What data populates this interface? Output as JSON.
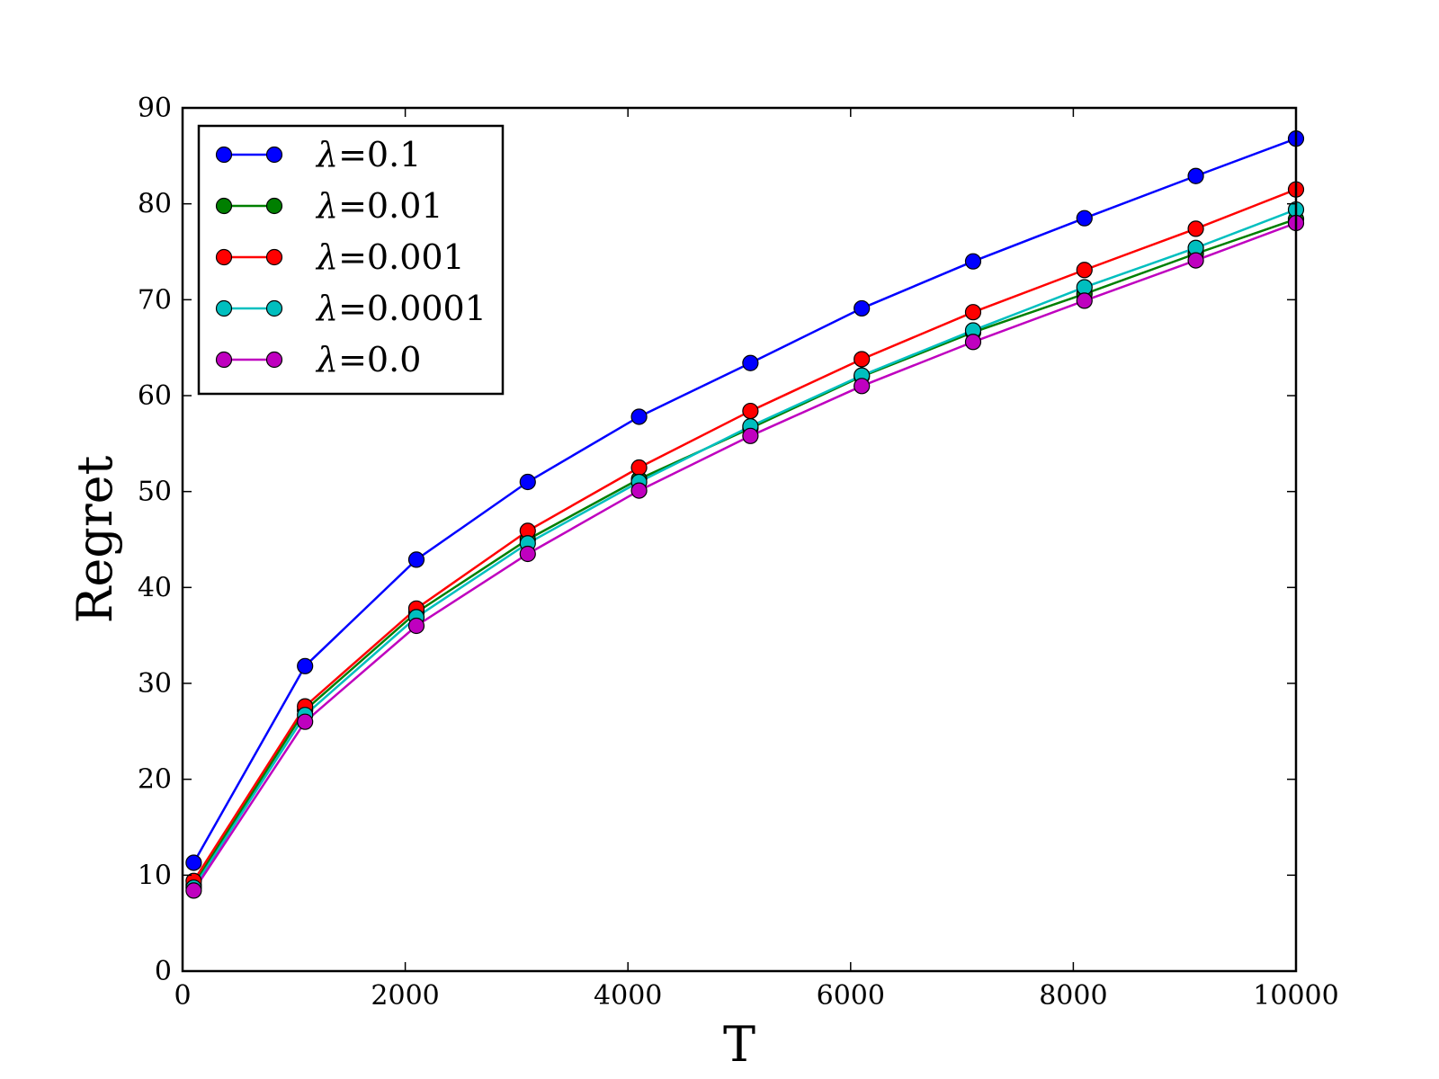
{
  "chart_data": {
    "type": "line",
    "title": "",
    "xlabel": "T",
    "ylabel": "Regret",
    "xlim": [
      0,
      10000
    ],
    "ylim": [
      0,
      90
    ],
    "xticks": [
      0,
      2000,
      4000,
      6000,
      8000,
      10000
    ],
    "xtick_labels": [
      "0",
      "2000",
      "4000",
      "6000",
      "8000",
      "10000"
    ],
    "yticks": [
      0,
      10,
      20,
      30,
      40,
      50,
      60,
      70,
      80,
      90
    ],
    "ytick_labels": [
      "0",
      "10",
      "20",
      "30",
      "40",
      "50",
      "60",
      "70",
      "80",
      "90"
    ],
    "grid": false,
    "legend_position": "top-left",
    "x": [
      100,
      1100,
      2100,
      3100,
      4100,
      5100,
      6100,
      7100,
      8100,
      9100,
      10000
    ],
    "series": [
      {
        "name": "λ=0.1",
        "lambda_symbol": "λ",
        "lambda_value": "=0.1",
        "color": "#0000ff",
        "values": [
          11.3,
          31.8,
          42.9,
          51.0,
          57.8,
          63.4,
          69.1,
          74.0,
          78.5,
          82.9,
          86.8
        ]
      },
      {
        "name": "λ=0.01",
        "lambda_symbol": "λ",
        "lambda_value": "=0.01",
        "color": "#007f00",
        "values": [
          9.0,
          27.2,
          37.4,
          45.0,
          51.3,
          56.6,
          62.0,
          66.6,
          70.6,
          74.8,
          78.4
        ]
      },
      {
        "name": "λ=0.001",
        "lambda_symbol": "λ",
        "lambda_value": "=0.001",
        "color": "#ff0000",
        "values": [
          9.4,
          27.6,
          37.8,
          45.9,
          52.5,
          58.4,
          63.8,
          68.7,
          73.1,
          77.4,
          81.5
        ]
      },
      {
        "name": "λ=0.0001",
        "lambda_symbol": "λ",
        "lambda_value": "=0.0001",
        "color": "#00bfbf",
        "values": [
          8.7,
          26.7,
          36.9,
          44.6,
          51.0,
          56.8,
          62.1,
          66.8,
          71.3,
          75.4,
          79.4
        ]
      },
      {
        "name": "λ=0.0",
        "lambda_symbol": "λ",
        "lambda_value": "=0.0",
        "color": "#bf00bf",
        "values": [
          8.4,
          26.0,
          36.0,
          43.5,
          50.1,
          55.8,
          61.0,
          65.6,
          69.9,
          74.1,
          78.0
        ]
      }
    ]
  }
}
